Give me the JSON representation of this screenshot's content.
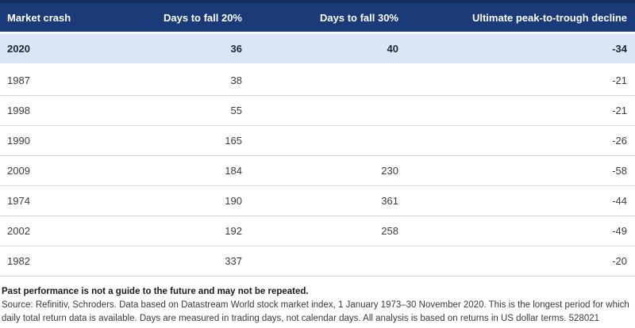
{
  "chart_data": {
    "type": "table",
    "columns": [
      "Market crash",
      "Days to fall 20%",
      "Days to fall 30%",
      "Ultimate peak-to-trough decline"
    ],
    "rows": [
      {
        "cells": [
          "2020",
          "36",
          "40",
          "-34"
        ],
        "highlight": true
      },
      {
        "cells": [
          "1987",
          "38",
          "",
          "-21"
        ],
        "highlight": false
      },
      {
        "cells": [
          "1998",
          "55",
          "",
          "-21"
        ],
        "highlight": false
      },
      {
        "cells": [
          "1990",
          "165",
          "",
          "-26"
        ],
        "highlight": false
      },
      {
        "cells": [
          "2009",
          "184",
          "230",
          "-58"
        ],
        "highlight": false
      },
      {
        "cells": [
          "1974",
          "190",
          "361",
          "-44"
        ],
        "highlight": false
      },
      {
        "cells": [
          "2002",
          "192",
          "258",
          "-49"
        ],
        "highlight": false
      },
      {
        "cells": [
          "1982",
          "337",
          "",
          "-20"
        ],
        "highlight": false
      }
    ],
    "layout_hints": {
      "first_column_align": "left",
      "value_columns_align": "right",
      "highlighted_row": "2020"
    }
  },
  "footer": {
    "disclaimer": "Past performance is not a guide to the future and may not be repeated.",
    "source": "Source: Refinitiv, Schroders. Data based on Datastream World stock market index, 1 January 1973–30 November 2020. This is the longest period for which daily total return data is available. Days are measured in trading days, not calendar days. All analysis is based on returns in US dollar terms. 528021"
  },
  "colors": {
    "header_bg": "#1b3a78",
    "header_top": "#152e60",
    "header_text": "#ffffff",
    "highlight_bg": "#d9e6f7",
    "highlight_text": "#1d2633",
    "row_text": "#3c3c3b",
    "divider": "#d8d8d8"
  }
}
